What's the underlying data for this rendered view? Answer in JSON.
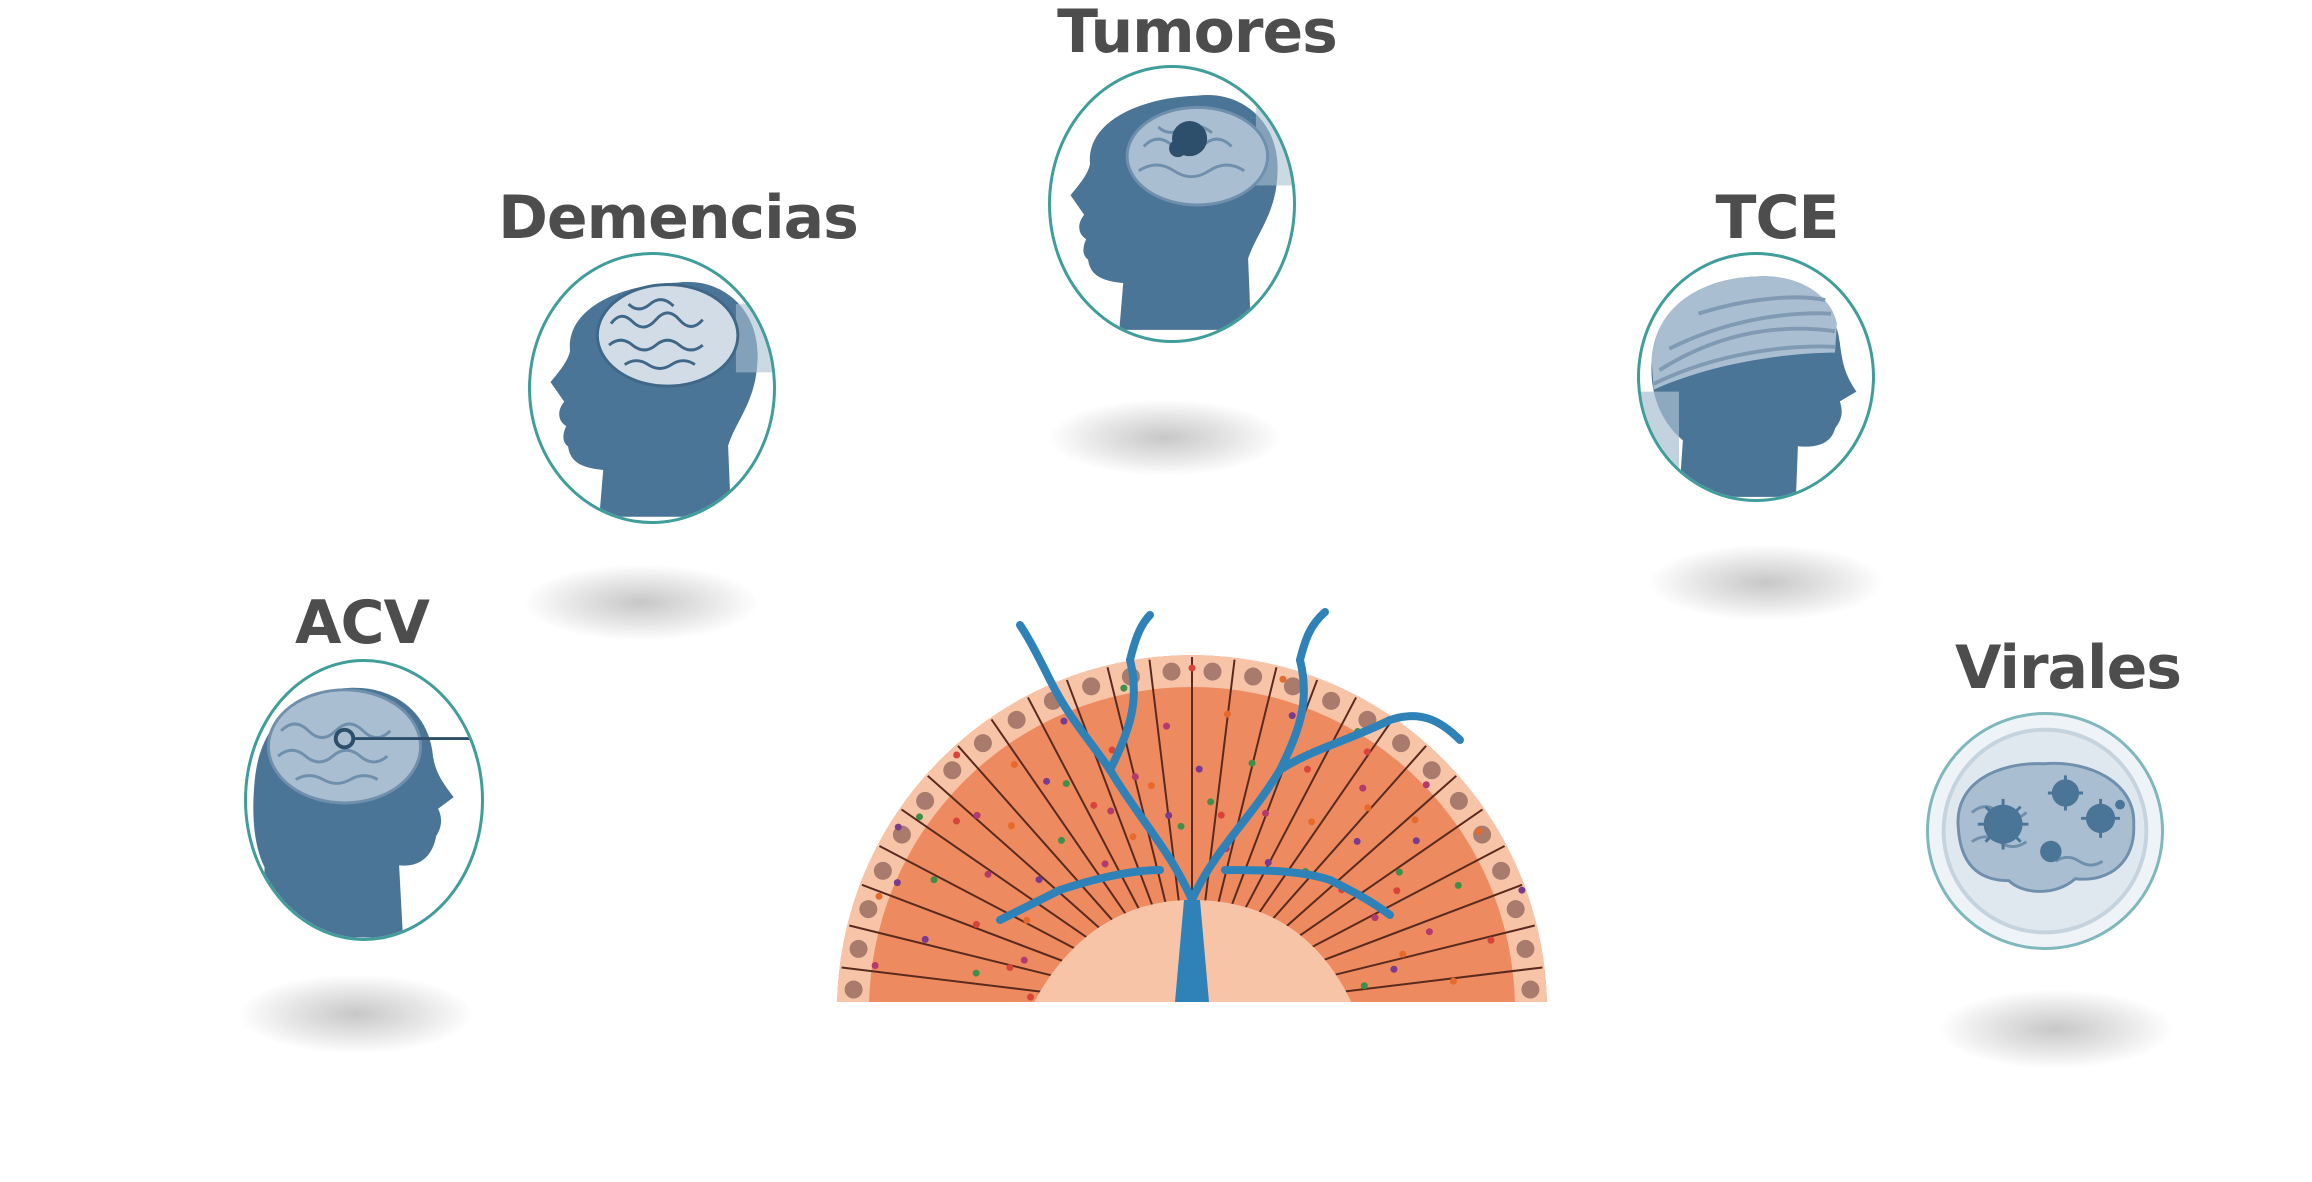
{
  "categories": [
    {
      "id": "tumores",
      "label": "Tumores",
      "icon": "brain-tumor-head-icon"
    },
    {
      "id": "demencias",
      "label": "Demencias",
      "icon": "atrophied-brain-head-icon"
    },
    {
      "id": "tce",
      "label": "TCE",
      "icon": "bandaged-head-icon"
    },
    {
      "id": "acv",
      "label": "ACV",
      "icon": "stroke-brain-head-icon"
    },
    {
      "id": "virales",
      "label": "Virales",
      "icon": "virus-brain-icon"
    }
  ],
  "center": {
    "icon": "fan-tree-icon"
  },
  "colors": {
    "label": "#4d4d4d",
    "head": "#4b7597",
    "head_dark": "#3f6787",
    "brain": "#a9bfd1",
    "badge_border": "#3f9d9a",
    "fan_orange": "#ee8a5f",
    "fan_light": "#f8c4a8",
    "fan_edge": "#9a6e63",
    "tree": "#2f82b7"
  }
}
